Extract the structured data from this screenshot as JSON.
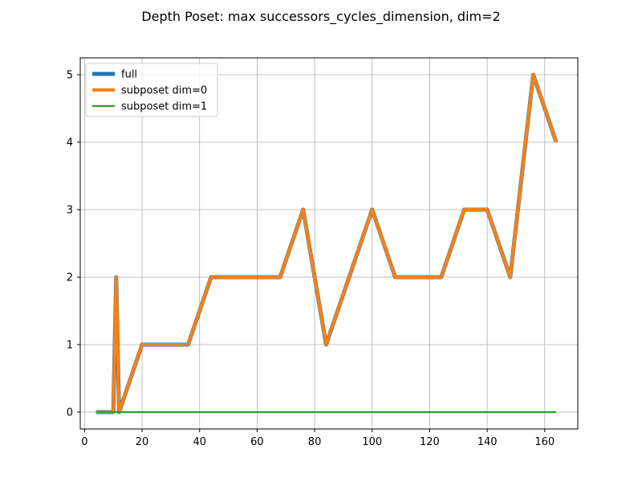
{
  "chart_data": {
    "type": "line",
    "title": "Depth Poset: max successors_cycles_dimension, dim=2",
    "xlabel": "",
    "ylabel": "",
    "xlim": [
      -1.5,
      171.5
    ],
    "ylim": [
      -0.25,
      5.25
    ],
    "x_ticks": [
      0,
      20,
      40,
      60,
      80,
      100,
      120,
      140,
      160
    ],
    "y_ticks": [
      0,
      1,
      2,
      3,
      4,
      5
    ],
    "grid": true,
    "legend_position": "upper-left",
    "series": [
      {
        "name": "full",
        "color": "#1f77b4",
        "x": [
          4,
          8,
          10,
          11,
          12,
          20,
          28,
          36,
          44,
          52,
          60,
          68,
          76,
          84,
          92,
          100,
          108,
          116,
          124,
          132,
          140,
          148,
          156,
          164
        ],
        "values": [
          0,
          0,
          0,
          2,
          0,
          1,
          1,
          1,
          2,
          2,
          2,
          2,
          3,
          1,
          2,
          3,
          2,
          2,
          2,
          3,
          3,
          2,
          5,
          4
        ]
      },
      {
        "name": "subposet dim=0",
        "color": "#ff7f0e",
        "x": [
          4,
          8,
          10,
          11,
          12,
          20,
          28,
          36,
          44,
          52,
          60,
          68,
          76,
          84,
          92,
          100,
          108,
          116,
          124,
          132,
          140,
          148,
          156,
          164
        ],
        "values": [
          0,
          0,
          0,
          2,
          0,
          1,
          1,
          1,
          2,
          2,
          2,
          2,
          3,
          1,
          2,
          3,
          2,
          2,
          2,
          3,
          3,
          2,
          5,
          4
        ]
      },
      {
        "name": "subposet dim=1",
        "color": "#2ca02c",
        "x": [
          4,
          164
        ],
        "values": [
          0,
          0
        ]
      }
    ]
  }
}
